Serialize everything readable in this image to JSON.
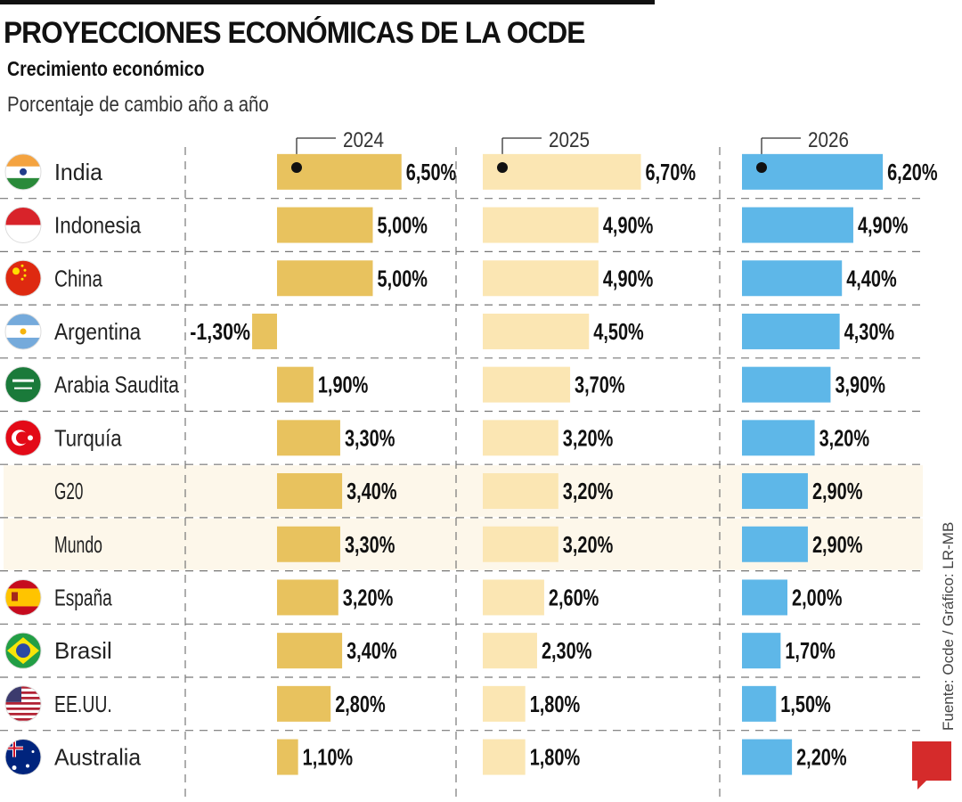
{
  "title": "PROYECCIONES ECONÓMICAS DE LA OCDE",
  "subtitle": "Crecimiento económico",
  "subtitle2": "Porcentaje de cambio año a año",
  "source": "Fuente: Ocde / Gráfico: LR-MB",
  "logo": "LR",
  "chart_data": {
    "type": "bar",
    "orientation": "horizontal",
    "title": "Crecimiento económico",
    "ylabel": "Porcentaje de cambio año a año",
    "grid": true,
    "categories": [
      "India",
      "Indonesia",
      "China",
      "Argentina",
      "Arabia Saudita",
      "Turquía",
      "G20",
      "Mundo",
      "España",
      "Brasil",
      "EE.UU.",
      "Australia"
    ],
    "flags": [
      "india",
      "indonesia",
      "china",
      "argentina",
      "saudi-arabia",
      "turkey",
      "",
      "",
      "spain",
      "brazil",
      "usa",
      "australia"
    ],
    "highlighted": [
      "G20",
      "Mundo"
    ],
    "series": [
      {
        "name": "2024",
        "color": "#e8c25e",
        "values": [
          6.5,
          5.0,
          5.0,
          -1.3,
          1.9,
          3.3,
          3.4,
          3.3,
          3.2,
          3.4,
          2.8,
          1.1
        ],
        "labels": [
          "6,50%",
          "5,00%",
          "5,00%",
          "-1,30%",
          "1,90%",
          "3,30%",
          "3,40%",
          "3,30%",
          "3,20%",
          "3,40%",
          "2,80%",
          "1,10%"
        ]
      },
      {
        "name": "2025",
        "color": "#fbe6b3",
        "values": [
          6.7,
          4.9,
          4.9,
          4.5,
          3.7,
          3.2,
          3.2,
          3.2,
          2.6,
          2.3,
          1.8,
          1.8
        ],
        "labels": [
          "6,70%",
          "4,90%",
          "4,90%",
          "4,50%",
          "3,70%",
          "3,20%",
          "3,20%",
          "3,20%",
          "2,60%",
          "2,30%",
          "1,80%",
          "1,80%"
        ]
      },
      {
        "name": "2026",
        "color": "#5eb7e8",
        "values": [
          6.2,
          4.9,
          4.4,
          4.3,
          3.9,
          3.2,
          2.9,
          2.9,
          2.0,
          1.7,
          1.5,
          2.2
        ],
        "labels": [
          "6,20%",
          "4,90%",
          "4,40%",
          "4,30%",
          "3,90%",
          "3,20%",
          "2,90%",
          "2,90%",
          "2,00%",
          "1,70%",
          "1,50%",
          "2,20%"
        ]
      }
    ]
  }
}
